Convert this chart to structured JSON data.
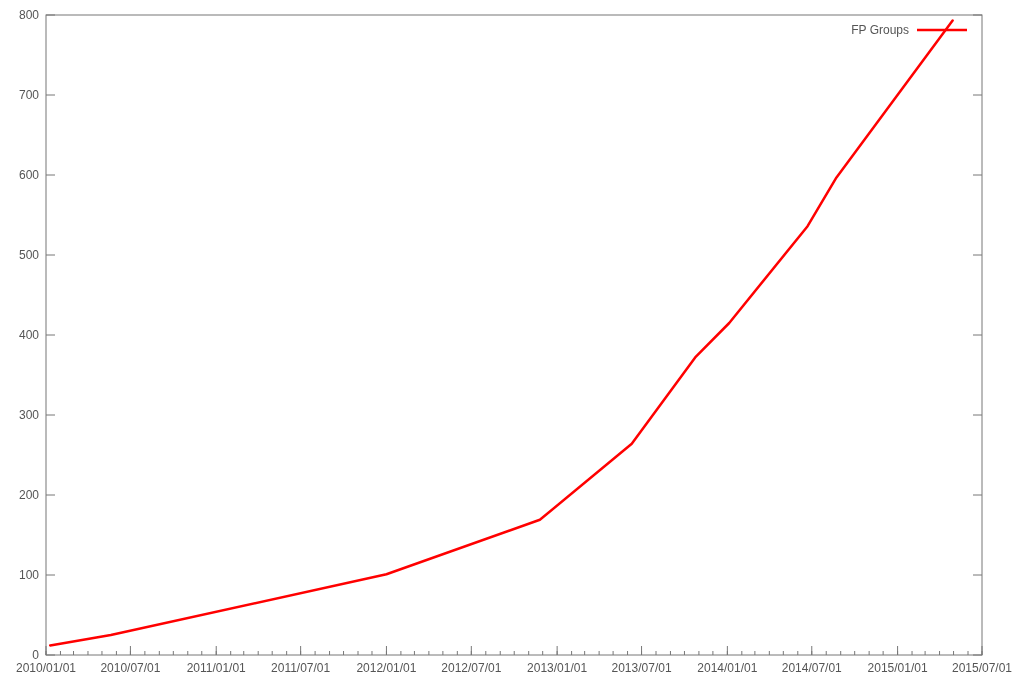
{
  "chart_data": {
    "type": "line",
    "x": [
      "2010-01-10",
      "2010-05-20",
      "2012-01-01",
      "2012-11-25",
      "2013-06-10",
      "2013-10-24",
      "2014-01-05",
      "2014-06-22",
      "2014-08-23",
      "2015-04-29"
    ],
    "series": [
      {
        "name": "FP Groups",
        "color": "#ff0000",
        "values": [
          12,
          25,
          101,
          169,
          264,
          372,
          415,
          536,
          597,
          793
        ]
      }
    ],
    "xlim": [
      "2010-01-01",
      "2015-07-01"
    ],
    "xticks": [
      {
        "value": "2010-01-01",
        "label": "2010/01/01"
      },
      {
        "value": "2010-07-01",
        "label": "2010/07/01"
      },
      {
        "value": "2011-01-01",
        "label": "2011/01/01"
      },
      {
        "value": "2011-07-01",
        "label": "2011/07/01"
      },
      {
        "value": "2012-01-01",
        "label": "2012/01/01"
      },
      {
        "value": "2012-07-01",
        "label": "2012/07/01"
      },
      {
        "value": "2013-01-01",
        "label": "2013/01/01"
      },
      {
        "value": "2013-07-01",
        "label": "2013/07/01"
      },
      {
        "value": "2014-01-01",
        "label": "2014/01/01"
      },
      {
        "value": "2014-07-01",
        "label": "2014/07/01"
      },
      {
        "value": "2015-01-01",
        "label": "2015/01/01"
      },
      {
        "value": "2015-07-01",
        "label": "2015/07/01"
      }
    ],
    "ylim": [
      0,
      800
    ],
    "yticks": [
      0,
      100,
      200,
      300,
      400,
      500,
      600,
      700,
      800
    ],
    "legend": "top right",
    "grid": false,
    "marker": "none",
    "line_style": "solid"
  }
}
